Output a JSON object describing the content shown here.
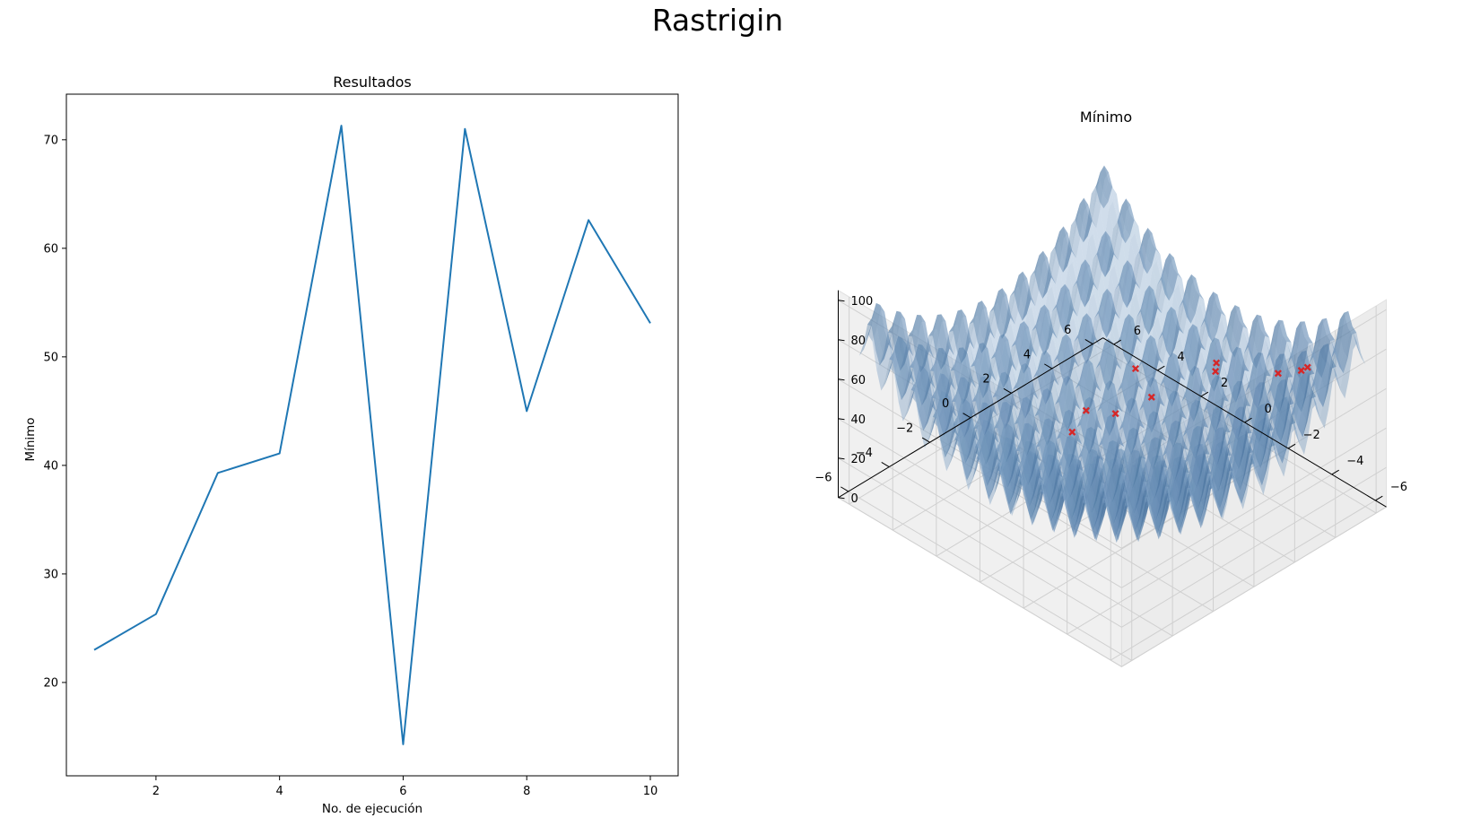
{
  "suptitle": "Rastrigin",
  "chart_data": [
    {
      "type": "line",
      "title": "Resultados",
      "xlabel": "No. de ejecución",
      "ylabel": "Mínimo",
      "x": [
        1,
        2,
        3,
        4,
        5,
        6,
        7,
        8,
        9,
        10
      ],
      "series": [
        {
          "values": [
            23.0,
            26.3,
            39.3,
            41.1,
            71.3,
            14.3,
            71.0,
            45.0,
            62.6,
            53.1
          ],
          "color": "#1f77b4"
        }
      ],
      "xlim": [
        0.55,
        10.45
      ],
      "ylim": [
        11.4,
        74.2
      ],
      "xticks": [
        2,
        4,
        6,
        8,
        10
      ],
      "yticks": [
        20,
        30,
        40,
        50,
        60,
        70
      ],
      "grid": false
    },
    {
      "type": "surface3d",
      "title": "Mínimo",
      "surface": "rastrigin",
      "surface_color": "#1f77b4",
      "marker_color": "#d62728",
      "x_ticks": [
        -6,
        -4,
        -2,
        0,
        2,
        4,
        6
      ],
      "y_ticks": [
        -6,
        -4,
        -2,
        0,
        2,
        4,
        6
      ],
      "z_ticks": [
        0,
        20,
        40,
        60,
        80,
        100
      ],
      "xlim": [
        -6.5,
        6.5
      ],
      "ylim": [
        -6.5,
        6.5
      ],
      "zlim": [
        0,
        105
      ],
      "points": [
        {
          "x": -4.1,
          "y": 5.2,
          "z": 63
        },
        {
          "x": -4.0,
          "y": 5.0,
          "z": 62
        },
        {
          "x": -3.5,
          "y": 4.4,
          "z": 61
        },
        {
          "x": -1.6,
          "y": 3.4,
          "z": 60
        },
        {
          "x": -1.0,
          "y": 4.0,
          "z": 48
        },
        {
          "x": 0.8,
          "y": 2.0,
          "z": 50
        },
        {
          "x": 0.6,
          "y": 0.8,
          "z": 36
        },
        {
          "x": 1.0,
          "y": 3.0,
          "z": 28
        },
        {
          "x": 2.6,
          "y": 1.5,
          "z": 20
        },
        {
          "x": 2.4,
          "y": 0.6,
          "z": 16
        }
      ]
    }
  ]
}
